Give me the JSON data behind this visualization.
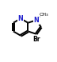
{
  "bg_color": "#ffffff",
  "bond_color": "#000000",
  "N_color": "#2020cc",
  "Br_color": "#000000",
  "figsize": [
    0.72,
    0.78
  ],
  "dpi": 100,
  "xlim": [
    0,
    10
  ],
  "ylim": [
    0,
    10.8
  ]
}
